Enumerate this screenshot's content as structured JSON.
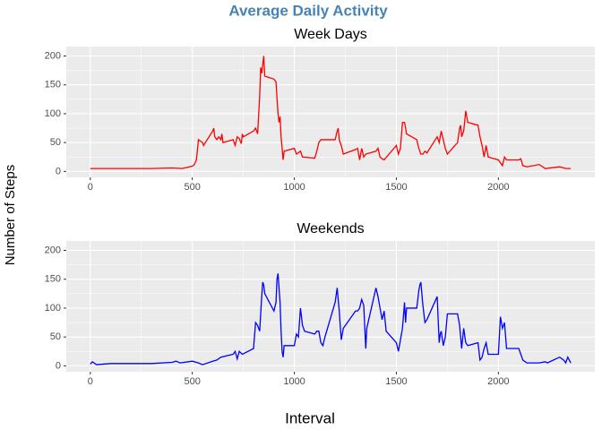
{
  "title": "Average Daily Activity",
  "x_label": "Interval",
  "y_label": "Number of Steps",
  "chart_data": [
    {
      "type": "line",
      "title": "Week Days",
      "color": "#ff0000",
      "grid": true,
      "xlim": [
        -117.75,
        2472.75
      ],
      "ylim": [
        -10.3,
        216.3
      ],
      "xticks": [
        0,
        500,
        1000,
        1500,
        2000
      ],
      "yticks": [
        0,
        50,
        100,
        150,
        200
      ],
      "x": [
        0,
        100,
        200,
        300,
        400,
        450,
        500,
        510,
        520,
        530,
        550,
        555,
        600,
        605,
        610,
        620,
        630,
        640,
        645,
        650,
        700,
        710,
        720,
        730,
        740,
        745,
        750,
        800,
        810,
        820,
        830,
        835,
        840,
        845,
        850,
        855,
        900,
        910,
        920,
        925,
        930,
        935,
        940,
        945,
        950,
        1000,
        1010,
        1030,
        1040,
        1100,
        1110,
        1120,
        1130,
        1200,
        1210,
        1215,
        1220,
        1230,
        1240,
        1300,
        1310,
        1320,
        1330,
        1340,
        1350,
        1400,
        1410,
        1420,
        1430,
        1440,
        1500,
        1510,
        1520,
        1530,
        1540,
        1550,
        1600,
        1610,
        1620,
        1630,
        1640,
        1650,
        1700,
        1710,
        1720,
        1730,
        1740,
        1750,
        1800,
        1810,
        1815,
        1820,
        1830,
        1840,
        1850,
        1900,
        1910,
        1920,
        1930,
        1940,
        1950,
        2000,
        2010,
        2020,
        2030,
        2040,
        2100,
        2110,
        2120,
        2140,
        2200,
        2230,
        2300,
        2330,
        2355
      ],
      "values": [
        5,
        5,
        5,
        5,
        6,
        5,
        9,
        12,
        20,
        55,
        50,
        45,
        70,
        75,
        60,
        55,
        60,
        55,
        65,
        50,
        55,
        45,
        60,
        57,
        48,
        65,
        60,
        70,
        75,
        65,
        130,
        180,
        170,
        185,
        200,
        165,
        160,
        155,
        100,
        85,
        95,
        60,
        40,
        20,
        35,
        40,
        30,
        35,
        25,
        23,
        35,
        50,
        55,
        55,
        70,
        75,
        55,
        45,
        30,
        38,
        40,
        20,
        40,
        25,
        30,
        35,
        40,
        25,
        22,
        20,
        45,
        30,
        40,
        85,
        85,
        65,
        55,
        40,
        30,
        30,
        35,
        32,
        60,
        50,
        70,
        55,
        40,
        30,
        50,
        75,
        80,
        60,
        70,
        105,
        85,
        80,
        60,
        45,
        25,
        45,
        25,
        20,
        15,
        10,
        25,
        20,
        20,
        22,
        10,
        8,
        12,
        5,
        8,
        5,
        5
      ]
    },
    {
      "type": "line",
      "title": "Weekends",
      "color": "#0000ff",
      "grid": true,
      "xlim": [
        -117.75,
        2472.75
      ],
      "ylim": [
        -10.3,
        216.3
      ],
      "xticks": [
        0,
        500,
        1000,
        1500,
        2000
      ],
      "yticks": [
        0,
        50,
        100,
        150,
        200
      ],
      "x": [
        0,
        10,
        30,
        100,
        200,
        300,
        400,
        420,
        440,
        500,
        530,
        550,
        600,
        620,
        640,
        700,
        710,
        720,
        730,
        745,
        800,
        810,
        820,
        830,
        840,
        845,
        850,
        855,
        900,
        910,
        915,
        920,
        930,
        935,
        940,
        945,
        950,
        1000,
        1010,
        1020,
        1030,
        1040,
        1050,
        1100,
        1110,
        1120,
        1130,
        1140,
        1150,
        1200,
        1210,
        1215,
        1220,
        1230,
        1240,
        1300,
        1310,
        1320,
        1330,
        1340,
        1350,
        1355,
        1400,
        1410,
        1420,
        1430,
        1440,
        1450,
        1500,
        1510,
        1520,
        1530,
        1540,
        1545,
        1550,
        1600,
        1610,
        1615,
        1620,
        1630,
        1640,
        1650,
        1700,
        1710,
        1715,
        1720,
        1730,
        1740,
        1750,
        1800,
        1810,
        1820,
        1830,
        1840,
        1850,
        1900,
        1910,
        1920,
        1930,
        1940,
        1950,
        2000,
        2010,
        2020,
        2030,
        2040,
        2100,
        2120,
        2140,
        2200,
        2230,
        2240,
        2300,
        2320,
        2330,
        2340,
        2355
      ],
      "values": [
        3,
        7,
        2,
        4,
        4,
        4,
        6,
        8,
        5,
        8,
        5,
        2,
        8,
        10,
        15,
        20,
        25,
        12,
        25,
        20,
        30,
        75,
        70,
        60,
        120,
        145,
        140,
        125,
        95,
        110,
        150,
        160,
        110,
        60,
        25,
        15,
        35,
        35,
        55,
        50,
        100,
        70,
        60,
        55,
        60,
        60,
        40,
        35,
        50,
        110,
        135,
        115,
        95,
        45,
        65,
        95,
        95,
        100,
        115,
        105,
        30,
        65,
        135,
        120,
        100,
        80,
        95,
        60,
        40,
        25,
        45,
        65,
        110,
        75,
        100,
        100,
        130,
        140,
        145,
        105,
        75,
        80,
        120,
        40,
        55,
        60,
        35,
        50,
        90,
        90,
        70,
        30,
        65,
        40,
        35,
        40,
        10,
        15,
        30,
        40,
        20,
        20,
        85,
        65,
        75,
        30,
        30,
        10,
        5,
        5,
        7,
        5,
        15,
        10,
        5,
        15,
        5
      ]
    }
  ]
}
